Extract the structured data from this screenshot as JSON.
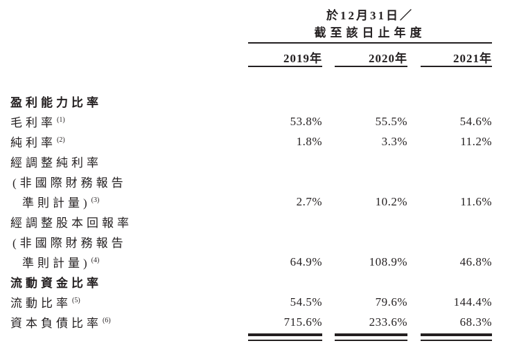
{
  "header": {
    "period_line1": "於12月31日／",
    "period_line2": "截至該日止年度",
    "years": [
      "2019年",
      "2020年",
      "2021年"
    ]
  },
  "rows": [
    {
      "label": "盈利能力比率",
      "type": "section"
    },
    {
      "label": "毛利率",
      "footnote": "(1)",
      "values": [
        "53.8%",
        "55.5%",
        "54.6%"
      ]
    },
    {
      "label": "純利率",
      "footnote": "(2)",
      "values": [
        "1.8%",
        "3.3%",
        "11.2%"
      ]
    },
    {
      "label": "經調整純利率"
    },
    {
      "label": "(非國際財務報告"
    },
    {
      "label": "準則計量)",
      "footnote": "(3)",
      "values": [
        "2.7%",
        "10.2%",
        "11.6%"
      ]
    },
    {
      "label": "經調整股本回報率"
    },
    {
      "label": "(非國際財務報告"
    },
    {
      "label": "準則計量)",
      "footnote": "(4)",
      "values": [
        "64.9%",
        "108.9%",
        "46.8%"
      ]
    },
    {
      "label": "流動資金比率",
      "type": "section"
    },
    {
      "label": "流動比率",
      "footnote": "(5)",
      "values": [
        "54.5%",
        "79.6%",
        "144.4%"
      ]
    },
    {
      "label": "資本負債比率",
      "footnote": "(6)",
      "values": [
        "715.6%",
        "233.6%",
        "68.3%"
      ]
    }
  ],
  "colors": {
    "text": "#231f20",
    "rule": "#231f20",
    "background": "#ffffff"
  }
}
